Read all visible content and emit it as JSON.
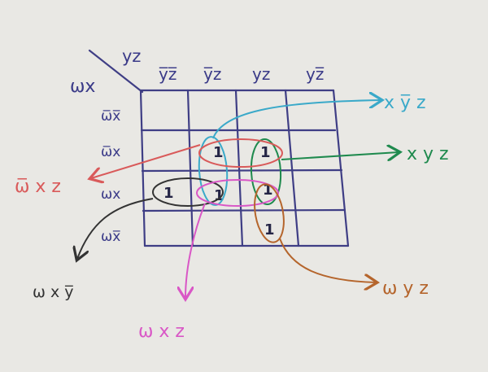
{
  "kmap": {
    "corner": {
      "rows_var": "ωx",
      "cols_var": "yz"
    },
    "col_headers": [
      "y̅z̅",
      "y̅z",
      "yz",
      "yz̅"
    ],
    "row_headers": [
      "ω̅x̅",
      "ω̅x",
      "ωx",
      "ωx̅"
    ],
    "ones": [
      {
        "row": 1,
        "col": 1,
        "value": "1"
      },
      {
        "row": 1,
        "col": 2,
        "value": "1"
      },
      {
        "row": 2,
        "col": 0,
        "value": "1"
      },
      {
        "row": 2,
        "col": 1,
        "value": "1"
      },
      {
        "row": 2,
        "col": 2,
        "value": "1"
      },
      {
        "row": 3,
        "col": 2,
        "value": "1"
      }
    ]
  },
  "groups": {
    "blue": {
      "label": "x y̅ z",
      "color": "#3aa9c9"
    },
    "green": {
      "label": "x y z",
      "color": "#1f8a4e"
    },
    "red": {
      "label": "ω̅ x z",
      "color": "#d95a5a"
    },
    "black": {
      "label": "ω x y̅",
      "color": "#333333"
    },
    "pink": {
      "label": "ω x z",
      "color": "#d957c6"
    },
    "orange": {
      "label": "ω y z",
      "color": "#b5652c"
    }
  },
  "ink": {
    "grid": "#3f3e85",
    "label": "#3a3a88"
  }
}
